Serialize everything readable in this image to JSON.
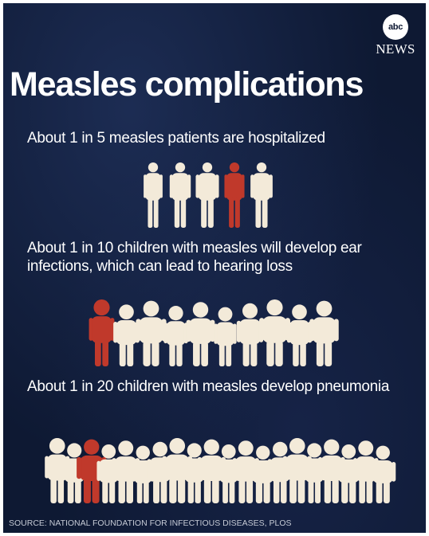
{
  "brand": {
    "logo_text": "abc",
    "name": "NEWS"
  },
  "title": "Measles complications",
  "facts": [
    {
      "text": "About 1 in 5 measles patients are hospitalized",
      "figures_total": 5,
      "figures_highlighted": 1,
      "figure_kind": "adult"
    },
    {
      "text": "About 1 in 10 children with measles will develop ear infections, which can lead to hearing loss",
      "figures_total": 10,
      "figures_highlighted": 1,
      "figure_kind": "child"
    },
    {
      "text": "About 1 in 20 children with measles develop pneumonia",
      "figures_total": 20,
      "figures_highlighted": 1,
      "figure_kind": "child"
    }
  ],
  "colors": {
    "background": "#0e1933",
    "figure": "#f3ead9",
    "highlight": "#c0392b"
  },
  "source": "SOURCE: NATIONAL FOUNDATION FOR INFECTIOUS DISEASES, PLOS"
}
